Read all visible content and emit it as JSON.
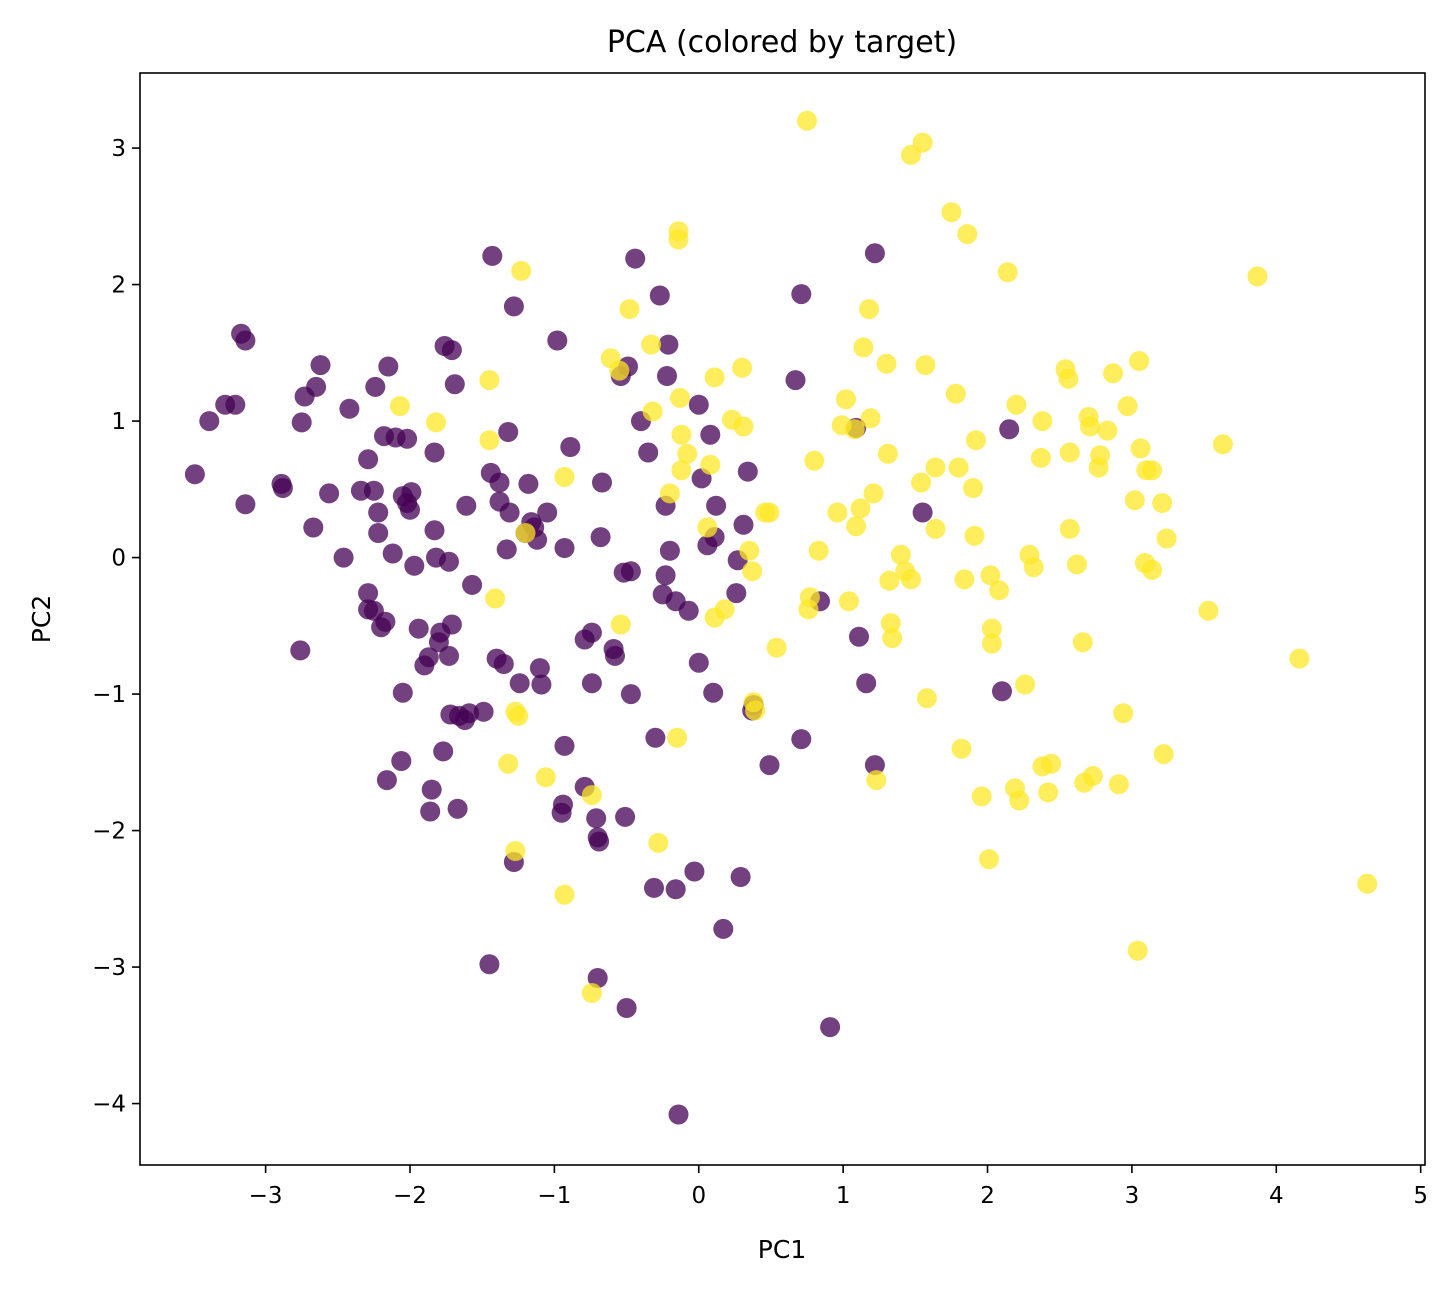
{
  "chart_data": {
    "type": "scatter",
    "title": "PCA (colored by target)",
    "xlabel": "PC1",
    "ylabel": "PC2",
    "xlim": [
      -3.87,
      5.03
    ],
    "ylim": [
      -4.45,
      3.55
    ],
    "xticks": [
      -3,
      -2,
      -1,
      0,
      1,
      2,
      3,
      4,
      5
    ],
    "yticks": [
      -4,
      -3,
      -2,
      -1,
      0,
      1,
      2,
      3
    ],
    "grid": false,
    "legend": "none",
    "point_alpha": 0.75,
    "series": [
      {
        "color": "#440154",
        "points": [
          [
            -3.49,
            0.61
          ],
          [
            -3.39,
            1.0
          ],
          [
            -3.28,
            1.12
          ],
          [
            -3.21,
            1.12
          ],
          [
            -3.17,
            1.64
          ],
          [
            -3.14,
            1.59
          ],
          [
            -3.14,
            0.39
          ],
          [
            -2.89,
            0.54
          ],
          [
            -2.88,
            0.51
          ],
          [
            -2.76,
            -0.68
          ],
          [
            -2.75,
            0.99
          ],
          [
            -2.73,
            1.18
          ],
          [
            -2.65,
            1.25
          ],
          [
            -2.62,
            1.41
          ],
          [
            -2.67,
            0.22
          ],
          [
            -2.56,
            0.47
          ],
          [
            -2.46,
            0.0
          ],
          [
            -2.42,
            1.09
          ],
          [
            -2.34,
            0.49
          ],
          [
            -2.29,
            0.72
          ],
          [
            -2.25,
            0.49
          ],
          [
            -2.24,
            1.25
          ],
          [
            -2.22,
            0.18
          ],
          [
            -2.22,
            0.33
          ],
          [
            -2.29,
            -0.26
          ],
          [
            -2.29,
            -0.38
          ],
          [
            -2.25,
            -0.39
          ],
          [
            -2.2,
            -0.51
          ],
          [
            -2.17,
            -0.47
          ],
          [
            -2.18,
            0.89
          ],
          [
            -2.15,
            1.4
          ],
          [
            -2.16,
            -1.63
          ],
          [
            -2.12,
            0.03
          ],
          [
            -2.1,
            0.88
          ],
          [
            -2.05,
            -0.99
          ],
          [
            -2.06,
            -1.49
          ],
          [
            -2.05,
            0.45
          ],
          [
            -2.02,
            0.87
          ],
          [
            -2.02,
            0.4
          ],
          [
            -1.99,
            0.48
          ],
          [
            -2.0,
            0.35
          ],
          [
            -1.97,
            -0.06
          ],
          [
            -1.94,
            -0.52
          ],
          [
            -1.9,
            -0.79
          ],
          [
            -1.87,
            -0.73
          ],
          [
            -1.85,
            -1.7
          ],
          [
            -1.86,
            -1.86
          ],
          [
            -1.83,
            0.2
          ],
          [
            -1.83,
            0.77
          ],
          [
            -1.82,
            0.0
          ],
          [
            -1.8,
            -0.62
          ],
          [
            -1.79,
            -0.55
          ],
          [
            -1.77,
            -1.42
          ],
          [
            -1.76,
            1.55
          ],
          [
            -1.73,
            -0.72
          ],
          [
            -1.73,
            -0.03
          ],
          [
            -1.72,
            -1.15
          ],
          [
            -1.71,
            -0.49
          ],
          [
            -1.71,
            1.52
          ],
          [
            -1.69,
            1.27
          ],
          [
            -1.67,
            -1.84
          ],
          [
            -1.66,
            -1.16
          ],
          [
            -1.62,
            -1.19
          ],
          [
            -1.61,
            0.38
          ],
          [
            -1.59,
            -1.14
          ],
          [
            -1.57,
            -0.2
          ],
          [
            -1.49,
            -1.13
          ],
          [
            -1.45,
            -2.98
          ],
          [
            -1.44,
            0.62
          ],
          [
            -1.43,
            2.21
          ],
          [
            -1.4,
            -0.74
          ],
          [
            -1.38,
            0.41
          ],
          [
            -1.38,
            0.55
          ],
          [
            -1.35,
            -0.78
          ],
          [
            -1.33,
            0.06
          ],
          [
            -1.32,
            0.92
          ],
          [
            -1.31,
            0.33
          ],
          [
            -1.28,
            -2.23
          ],
          [
            -1.28,
            1.84
          ],
          [
            -1.24,
            -0.92
          ],
          [
            -1.2,
            0.18
          ],
          [
            -1.18,
            0.54
          ],
          [
            -1.16,
            0.26
          ],
          [
            -1.14,
            0.22
          ],
          [
            -1.12,
            0.13
          ],
          [
            -1.1,
            -0.81
          ],
          [
            -1.09,
            -0.93
          ],
          [
            -1.05,
            0.33
          ],
          [
            -0.98,
            1.59
          ],
          [
            -0.94,
            -1.81
          ],
          [
            -0.95,
            -1.87
          ],
          [
            -0.93,
            -1.38
          ],
          [
            -0.93,
            0.07
          ],
          [
            -0.89,
            0.81
          ],
          [
            -0.79,
            -0.6
          ],
          [
            -0.79,
            -1.68
          ],
          [
            -0.74,
            -0.55
          ],
          [
            -0.74,
            -0.92
          ],
          [
            -0.71,
            -1.91
          ],
          [
            -0.7,
            -3.08
          ],
          [
            -0.7,
            -2.05
          ],
          [
            -0.69,
            -2.08
          ],
          [
            -0.67,
            0.55
          ],
          [
            -0.68,
            0.15
          ],
          [
            -0.59,
            -0.67
          ],
          [
            -0.58,
            -0.72
          ],
          [
            -0.54,
            1.33
          ],
          [
            -0.52,
            -0.11
          ],
          [
            -0.51,
            -1.9
          ],
          [
            -0.5,
            -3.3
          ],
          [
            -0.49,
            1.4
          ],
          [
            -0.47,
            -0.1
          ],
          [
            -0.47,
            -1.0
          ],
          [
            -0.44,
            2.19
          ],
          [
            -0.4,
            1.0
          ],
          [
            -0.35,
            0.77
          ],
          [
            -0.31,
            -2.42
          ],
          [
            -0.3,
            -1.32
          ],
          [
            -0.27,
            1.92
          ],
          [
            -0.25,
            -0.27
          ],
          [
            -0.23,
            -0.13
          ],
          [
            -0.23,
            0.38
          ],
          [
            -0.21,
            1.56
          ],
          [
            -0.22,
            1.33
          ],
          [
            -0.2,
            0.05
          ],
          [
            -0.16,
            -2.43
          ],
          [
            -0.16,
            -0.32
          ],
          [
            -0.14,
            -4.08
          ],
          [
            -0.07,
            -0.39
          ],
          [
            -0.03,
            -2.3
          ],
          [
            0.0,
            -0.77
          ],
          [
            0.0,
            1.12
          ],
          [
            0.02,
            0.58
          ],
          [
            0.06,
            0.09
          ],
          [
            0.08,
            0.9
          ],
          [
            0.1,
            -0.99
          ],
          [
            0.11,
            0.15
          ],
          [
            0.12,
            0.38
          ],
          [
            0.17,
            -2.72
          ],
          [
            0.26,
            -0.26
          ],
          [
            0.27,
            -0.02
          ],
          [
            0.29,
            -2.34
          ],
          [
            0.31,
            0.24
          ],
          [
            0.34,
            0.63
          ],
          [
            0.38,
            -1.08
          ],
          [
            0.37,
            -1.12
          ],
          [
            0.49,
            -1.52
          ],
          [
            0.67,
            1.3
          ],
          [
            0.71,
            -1.33
          ],
          [
            0.71,
            1.93
          ],
          [
            0.84,
            -0.32
          ],
          [
            0.91,
            -3.44
          ],
          [
            1.09,
            0.95
          ],
          [
            1.11,
            -0.58
          ],
          [
            1.16,
            -0.92
          ],
          [
            1.22,
            -1.52
          ],
          [
            1.22,
            2.23
          ],
          [
            1.55,
            0.33
          ],
          [
            2.1,
            -0.98
          ],
          [
            2.15,
            0.94
          ]
        ]
      },
      {
        "color": "#fde725",
        "points": [
          [
            -2.07,
            1.11
          ],
          [
            -1.82,
            0.99
          ],
          [
            -1.45,
            1.3
          ],
          [
            -1.45,
            0.86
          ],
          [
            -1.41,
            -0.3
          ],
          [
            -1.32,
            -1.51
          ],
          [
            -1.27,
            -1.13
          ],
          [
            -1.25,
            -1.16
          ],
          [
            -1.27,
            -2.15
          ],
          [
            -1.23,
            2.1
          ],
          [
            -1.2,
            0.18
          ],
          [
            -1.06,
            -1.61
          ],
          [
            -0.93,
            -2.47
          ],
          [
            -0.93,
            0.59
          ],
          [
            -0.74,
            -1.74
          ],
          [
            -0.74,
            -3.19
          ],
          [
            -0.61,
            1.46
          ],
          [
            -0.55,
            1.37
          ],
          [
            -0.54,
            -0.49
          ],
          [
            -0.48,
            1.82
          ],
          [
            -0.33,
            1.56
          ],
          [
            -0.32,
            1.07
          ],
          [
            -0.28,
            -2.09
          ],
          [
            -0.2,
            0.47
          ],
          [
            -0.15,
            -1.32
          ],
          [
            -0.14,
            2.39
          ],
          [
            -0.14,
            2.33
          ],
          [
            -0.13,
            1.17
          ],
          [
            -0.12,
            0.9
          ],
          [
            -0.12,
            0.64
          ],
          [
            -0.08,
            0.76
          ],
          [
            0.06,
            0.22
          ],
          [
            0.08,
            0.68
          ],
          [
            0.11,
            1.32
          ],
          [
            0.11,
            -0.44
          ],
          [
            0.18,
            -0.38
          ],
          [
            0.23,
            1.01
          ],
          [
            0.3,
            1.39
          ],
          [
            0.31,
            0.96
          ],
          [
            0.35,
            0.05
          ],
          [
            0.37,
            -0.1
          ],
          [
            0.39,
            -1.12
          ],
          [
            0.38,
            -1.06
          ],
          [
            0.46,
            0.33
          ],
          [
            0.49,
            0.33
          ],
          [
            0.54,
            -0.66
          ],
          [
            0.75,
            3.2
          ],
          [
            0.76,
            -0.38
          ],
          [
            0.77,
            -0.29
          ],
          [
            0.8,
            0.71
          ],
          [
            0.83,
            0.05
          ],
          [
            0.96,
            0.33
          ],
          [
            1.02,
            1.16
          ],
          [
            0.99,
            0.97
          ],
          [
            1.04,
            -0.32
          ],
          [
            1.08,
            0.94
          ],
          [
            1.09,
            0.23
          ],
          [
            1.12,
            0.36
          ],
          [
            1.14,
            1.54
          ],
          [
            1.18,
            1.82
          ],
          [
            1.19,
            1.02
          ],
          [
            1.21,
            0.47
          ],
          [
            1.23,
            -1.63
          ],
          [
            1.3,
            1.42
          ],
          [
            1.31,
            0.76
          ],
          [
            1.32,
            -0.17
          ],
          [
            1.33,
            -0.48
          ],
          [
            1.34,
            -0.59
          ],
          [
            1.4,
            0.02
          ],
          [
            1.43,
            -0.1
          ],
          [
            1.47,
            -0.16
          ],
          [
            1.47,
            2.95
          ],
          [
            1.55,
            3.04
          ],
          [
            1.54,
            0.55
          ],
          [
            1.57,
            1.41
          ],
          [
            1.58,
            -1.03
          ],
          [
            1.64,
            0.66
          ],
          [
            1.64,
            0.21
          ],
          [
            1.75,
            2.53
          ],
          [
            1.78,
            1.2
          ],
          [
            1.8,
            0.66
          ],
          [
            1.82,
            -1.4
          ],
          [
            1.84,
            -0.16
          ],
          [
            1.86,
            2.37
          ],
          [
            1.9,
            0.51
          ],
          [
            1.91,
            0.16
          ],
          [
            1.92,
            0.86
          ],
          [
            1.96,
            -1.75
          ],
          [
            2.01,
            -2.21
          ],
          [
            2.02,
            -0.13
          ],
          [
            2.03,
            -0.52
          ],
          [
            2.03,
            -0.63
          ],
          [
            2.08,
            -0.24
          ],
          [
            2.14,
            2.09
          ],
          [
            2.2,
            1.12
          ],
          [
            2.19,
            -1.69
          ],
          [
            2.22,
            -1.78
          ],
          [
            2.26,
            -0.93
          ],
          [
            2.29,
            0.02
          ],
          [
            2.32,
            -0.07
          ],
          [
            2.37,
            0.73
          ],
          [
            2.38,
            1.0
          ],
          [
            2.38,
            -1.53
          ],
          [
            2.42,
            -1.72
          ],
          [
            2.44,
            -1.51
          ],
          [
            2.54,
            1.38
          ],
          [
            2.56,
            1.31
          ],
          [
            2.57,
            0.77
          ],
          [
            2.57,
            0.21
          ],
          [
            2.62,
            -0.05
          ],
          [
            2.66,
            -0.62
          ],
          [
            2.67,
            -1.65
          ],
          [
            2.7,
            1.03
          ],
          [
            2.71,
            0.96
          ],
          [
            2.73,
            -1.6
          ],
          [
            2.77,
            0.66
          ],
          [
            2.78,
            0.75
          ],
          [
            2.83,
            0.93
          ],
          [
            2.87,
            1.35
          ],
          [
            2.91,
            -1.66
          ],
          [
            2.94,
            -1.14
          ],
          [
            2.97,
            1.11
          ],
          [
            3.02,
            0.42
          ],
          [
            3.04,
            -2.88
          ],
          [
            3.05,
            1.44
          ],
          [
            3.06,
            0.8
          ],
          [
            3.09,
            -0.04
          ],
          [
            3.1,
            0.64
          ],
          [
            3.14,
            0.64
          ],
          [
            3.14,
            -0.09
          ],
          [
            3.21,
            0.4
          ],
          [
            3.22,
            -1.44
          ],
          [
            3.24,
            0.14
          ],
          [
            3.53,
            -0.39
          ],
          [
            3.63,
            0.83
          ],
          [
            3.87,
            2.06
          ],
          [
            4.16,
            -0.74
          ],
          [
            4.63,
            -2.39
          ]
        ]
      }
    ]
  }
}
